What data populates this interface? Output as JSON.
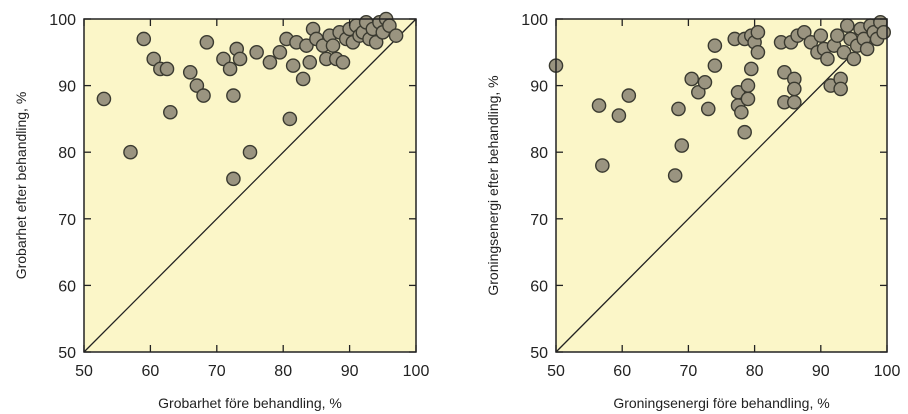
{
  "chart_data": [
    {
      "type": "scatter",
      "xlabel": "Grobarhet före behandling, %",
      "ylabel": "Grobarhet efter behandling, %",
      "xlim": [
        50,
        100
      ],
      "ylim": [
        50,
        100
      ],
      "xticks": [
        "50",
        "60",
        "70",
        "80",
        "90",
        "100"
      ],
      "yticks": [
        "50",
        "60",
        "70",
        "80",
        "90",
        "100"
      ],
      "reference_line": "y = x",
      "background": "#fbf6c8",
      "marker_color": "#9a9480",
      "points": [
        [
          53,
          88
        ],
        [
          57,
          80
        ],
        [
          59,
          97
        ],
        [
          60.5,
          94
        ],
        [
          61.5,
          92.5
        ],
        [
          62.5,
          92.5
        ],
        [
          63,
          86
        ],
        [
          66,
          92
        ],
        [
          67,
          90
        ],
        [
          68,
          88.5
        ],
        [
          68.5,
          96.5
        ],
        [
          71,
          94
        ],
        [
          72,
          92.5
        ],
        [
          72.5,
          88.5
        ],
        [
          72.5,
          76
        ],
        [
          73,
          95.5
        ],
        [
          73.5,
          94
        ],
        [
          75,
          80
        ],
        [
          76,
          95
        ],
        [
          78,
          93.5
        ],
        [
          79.5,
          95
        ],
        [
          80.5,
          97
        ],
        [
          81,
          85
        ],
        [
          81.5,
          93
        ],
        [
          82,
          96.5
        ],
        [
          83,
          91
        ],
        [
          83.5,
          96
        ],
        [
          84,
          93.5
        ],
        [
          84.5,
          98.5
        ],
        [
          85,
          97
        ],
        [
          86,
          96
        ],
        [
          86.5,
          94
        ],
        [
          87,
          97.5
        ],
        [
          87.5,
          96
        ],
        [
          88,
          94
        ],
        [
          88.5,
          98
        ],
        [
          89,
          93.5
        ],
        [
          89.5,
          97
        ],
        [
          90,
          98.5
        ],
        [
          90.5,
          96.5
        ],
        [
          91,
          99
        ],
        [
          91.5,
          97.5
        ],
        [
          92,
          98
        ],
        [
          92.5,
          99.5
        ],
        [
          93,
          97
        ],
        [
          93.5,
          98.5
        ],
        [
          94,
          96.5
        ],
        [
          94.5,
          99.5
        ],
        [
          95,
          98
        ],
        [
          95.5,
          100
        ],
        [
          96,
          99
        ],
        [
          97,
          97.5
        ]
      ]
    },
    {
      "type": "scatter",
      "xlabel": "Groningsenergi före behandling, %",
      "ylabel": "Groningsenergi efter behandling, %",
      "xlim": [
        50,
        100
      ],
      "ylim": [
        50,
        100
      ],
      "xticks": [
        "50",
        "60",
        "70",
        "80",
        "90",
        "100"
      ],
      "yticks": [
        "50",
        "60",
        "70",
        "80",
        "90",
        "100"
      ],
      "reference_line": "y = x",
      "background": "#fbf6c8",
      "marker_color": "#9a9480",
      "points": [
        [
          50,
          93
        ],
        [
          56.5,
          87
        ],
        [
          57,
          78
        ],
        [
          59.5,
          85.5
        ],
        [
          61,
          88.5
        ],
        [
          68,
          76.5
        ],
        [
          68.5,
          86.5
        ],
        [
          69,
          81
        ],
        [
          70.5,
          91
        ],
        [
          71.5,
          89
        ],
        [
          72.5,
          90.5
        ],
        [
          73,
          86.5
        ],
        [
          74,
          93
        ],
        [
          74,
          96
        ],
        [
          77,
          97
        ],
        [
          77.5,
          89
        ],
        [
          77.5,
          87
        ],
        [
          78,
          86
        ],
        [
          78.5,
          83
        ],
        [
          78.5,
          97
        ],
        [
          79,
          90
        ],
        [
          79,
          88
        ],
        [
          79.5,
          97.5
        ],
        [
          79.5,
          92.5
        ],
        [
          80,
          96.5
        ],
        [
          80.5,
          95
        ],
        [
          80.5,
          98
        ],
        [
          84,
          96.5
        ],
        [
          84.5,
          92
        ],
        [
          84.5,
          87.5
        ],
        [
          85.5,
          96.5
        ],
        [
          86,
          91
        ],
        [
          86,
          89.5
        ],
        [
          86,
          87.5
        ],
        [
          86.5,
          97.5
        ],
        [
          87.5,
          98
        ],
        [
          88.5,
          96.5
        ],
        [
          89.5,
          95
        ],
        [
          90,
          97.5
        ],
        [
          90.5,
          95.5
        ],
        [
          91,
          94
        ],
        [
          91.5,
          90
        ],
        [
          92,
          96
        ],
        [
          92.5,
          97.5
        ],
        [
          93,
          91
        ],
        [
          93,
          89.5
        ],
        [
          93.5,
          95
        ],
        [
          94,
          99
        ],
        [
          94.5,
          97
        ],
        [
          95,
          94
        ],
        [
          95.5,
          96
        ],
        [
          96,
          98.5
        ],
        [
          96.5,
          97
        ],
        [
          97,
          95.5
        ],
        [
          97.5,
          99
        ],
        [
          98,
          98
        ],
        [
          98.5,
          97
        ],
        [
          99,
          99.5
        ],
        [
          99.5,
          98
        ]
      ]
    }
  ]
}
